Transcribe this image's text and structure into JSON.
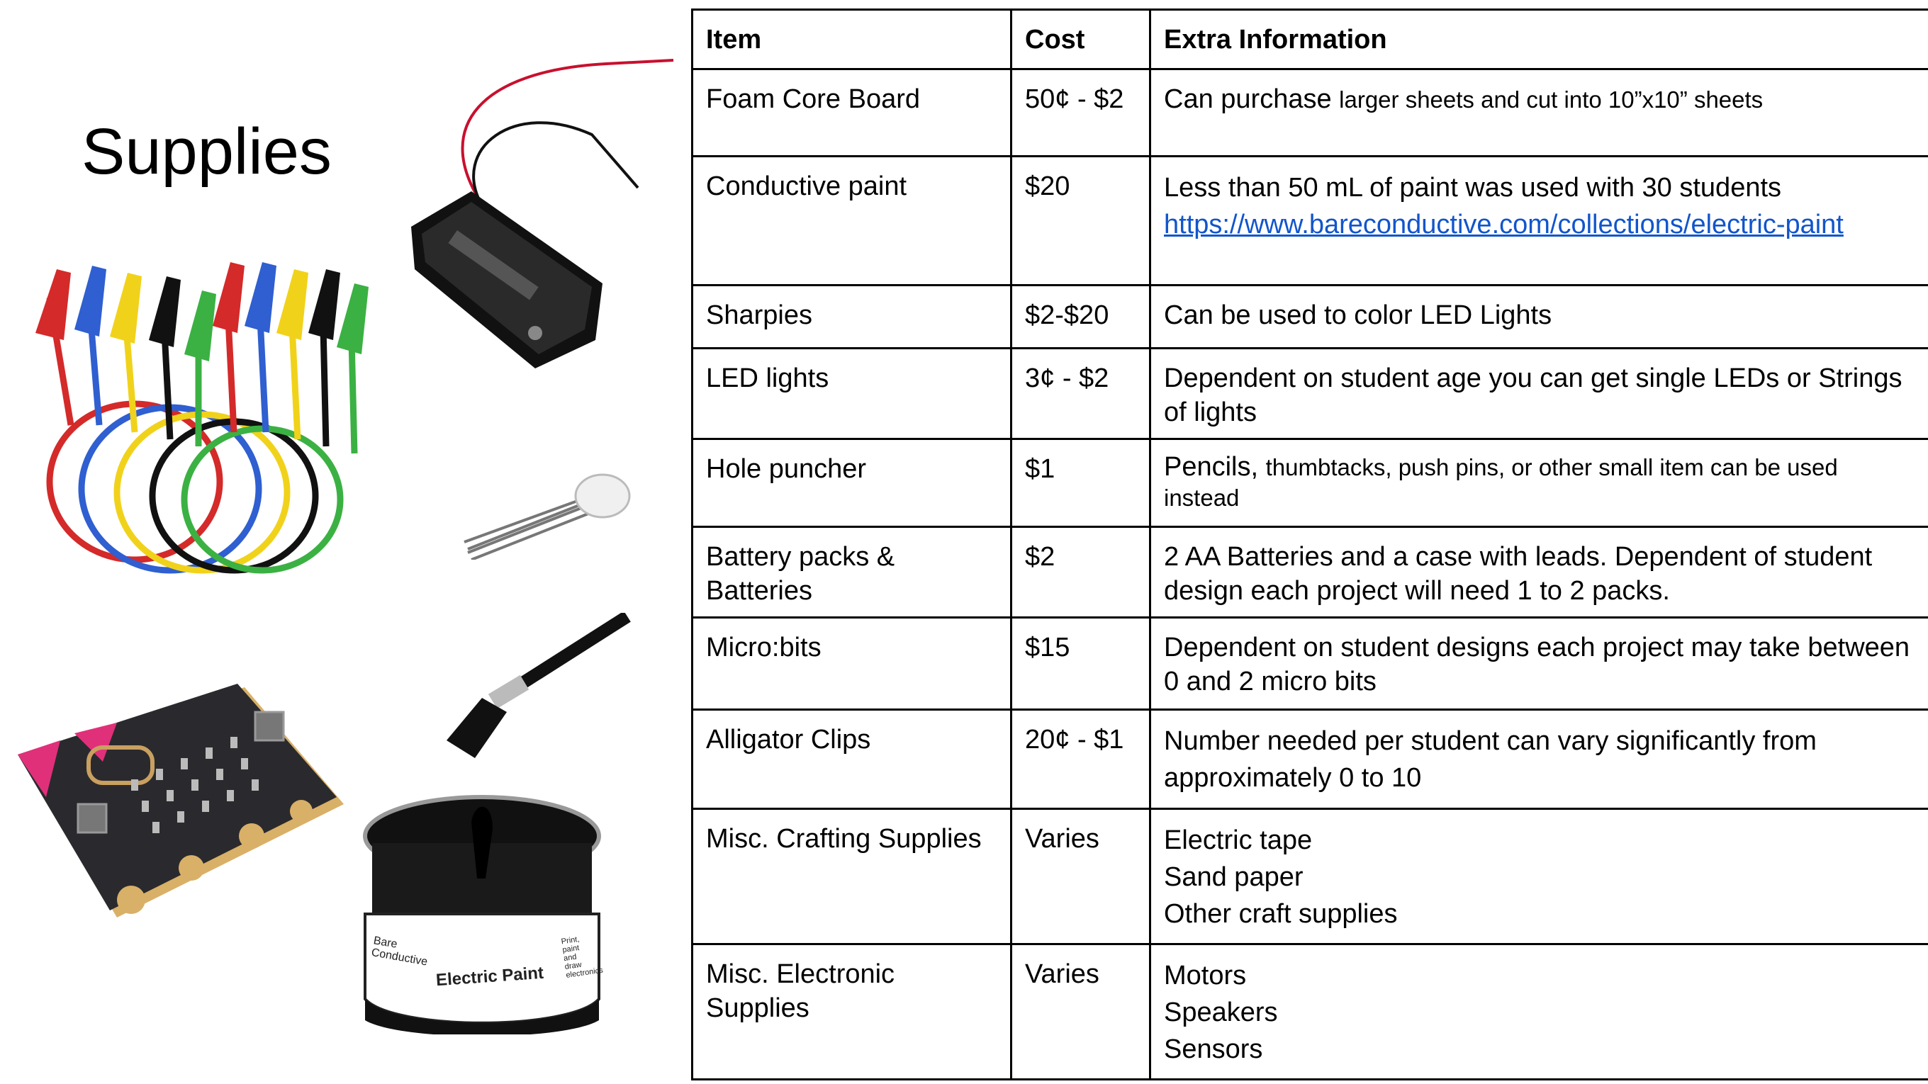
{
  "title": "Supplies",
  "images": {
    "alligator_clips": "alligator-clip-cables-icon",
    "battery_holder": "battery-holder-icon",
    "led": "led-icon",
    "paint_brush": "paint-brush-icon",
    "microbit": "microbit-board-icon",
    "paint_jar": "electric-paint-jar-icon",
    "jar_brand": "Bare Conductive",
    "jar_label": "Electric Paint",
    "jar_side_text": "Print, paint and draw electronics"
  },
  "table": {
    "headers": [
      "Item",
      "Cost",
      "Extra Information"
    ],
    "rows": [
      {
        "item": "Foam Core Board",
        "cost": "50¢ - $2",
        "info_main": "Can purchase ",
        "info_small": "larger sheets and cut into 10”x10” sheets"
      },
      {
        "item": "Conductive paint",
        "cost": "$20",
        "info_main": "Less than 50 mL of paint was used with 30 students",
        "info_link": "https://www.bareconductive.com/collections/electric-paint"
      },
      {
        "item": "Sharpies",
        "cost": "$2-$20",
        "info_main": "Can be used to color LED Lights"
      },
      {
        "item": "LED lights",
        "cost": "3¢ - $2",
        "info_main": "Dependent on student age you can get single LEDs or Strings of lights"
      },
      {
        "item": "Hole puncher",
        "cost": "$1",
        "info_main": "Pencils, ",
        "info_small": "thumbtacks, push pins, or other small item can be used instead"
      },
      {
        "item": "Battery packs & Batteries",
        "cost": "$2",
        "info_main": "2 AA Batteries and a case with leads. Dependent of student design each project will need 1 to 2 packs."
      },
      {
        "item": "Micro:bits",
        "cost": "$15",
        "info_main": "Dependent on student designs each project may take between 0 and 2 micro bits"
      },
      {
        "item": "Alligator Clips",
        "cost": "20¢ - $1",
        "info_main": "Number needed per student can vary significantly from approximately 0 to 10"
      },
      {
        "item": "Misc. Crafting Supplies",
        "cost": "Varies",
        "info_lines": [
          "Electric tape",
          "Sand paper",
          "Other craft supplies"
        ]
      },
      {
        "item": "Misc. Electronic Supplies",
        "cost": "Varies",
        "info_lines": [
          "Motors",
          "Speakers",
          "Sensors"
        ]
      }
    ]
  }
}
